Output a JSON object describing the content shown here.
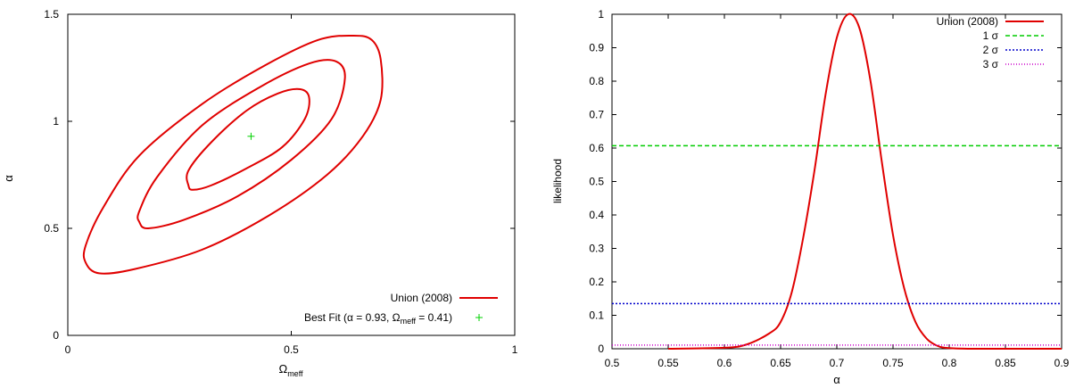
{
  "chart_data": [
    {
      "type": "line",
      "title": "",
      "xlabel": "Ω",
      "xlabel_sub": "meff",
      "ylabel": "α",
      "xlim": [
        0,
        1
      ],
      "ylim": [
        0,
        1.5
      ],
      "xticks": [
        0,
        0.5,
        1
      ],
      "xtick_labels": [
        "0",
        "0.5",
        "1"
      ],
      "yticks": [
        0,
        0.5,
        1,
        1.5
      ],
      "ytick_labels": [
        "0",
        "0.5",
        "1",
        "1.5"
      ],
      "legend_position": "bottom-right",
      "series": [
        {
          "name": "Union (2008)",
          "color": "#e00000",
          "contours": [
            [
              [
                0.27,
                0.7
              ],
              [
                0.28,
                0.68
              ],
              [
                0.32,
                0.7
              ],
              [
                0.4,
                0.78
              ],
              [
                0.48,
                0.88
              ],
              [
                0.53,
                1.01
              ],
              [
                0.54,
                1.11
              ],
              [
                0.52,
                1.15
              ],
              [
                0.47,
                1.13
              ],
              [
                0.4,
                1.05
              ],
              [
                0.32,
                0.9
              ],
              [
                0.27,
                0.77
              ],
              [
                0.27,
                0.7
              ]
            ],
            [
              [
                0.16,
                0.53
              ],
              [
                0.18,
                0.5
              ],
              [
                0.26,
                0.54
              ],
              [
                0.38,
                0.65
              ],
              [
                0.5,
                0.82
              ],
              [
                0.59,
                1.01
              ],
              [
                0.62,
                1.2
              ],
              [
                0.6,
                1.28
              ],
              [
                0.54,
                1.27
              ],
              [
                0.43,
                1.16
              ],
              [
                0.3,
                0.98
              ],
              [
                0.2,
                0.74
              ],
              [
                0.16,
                0.58
              ],
              [
                0.16,
                0.53
              ]
            ],
            [
              [
                0.04,
                0.34
              ],
              [
                0.07,
                0.29
              ],
              [
                0.15,
                0.31
              ],
              [
                0.3,
                0.4
              ],
              [
                0.45,
                0.56
              ],
              [
                0.58,
                0.75
              ],
              [
                0.66,
                0.93
              ],
              [
                0.7,
                1.1
              ],
              [
                0.7,
                1.29
              ],
              [
                0.68,
                1.38
              ],
              [
                0.64,
                1.4
              ],
              [
                0.56,
                1.38
              ],
              [
                0.44,
                1.26
              ],
              [
                0.3,
                1.08
              ],
              [
                0.16,
                0.84
              ],
              [
                0.08,
                0.6
              ],
              [
                0.04,
                0.42
              ],
              [
                0.04,
                0.34
              ]
            ]
          ]
        },
        {
          "name": "Best Fit (α = 0.93, Ω",
          "name_sub": "meff",
          "name_suffix": " = 0.41)",
          "color": "#00d000",
          "marker": "+",
          "points": [
            [
              0.41,
              0.93
            ]
          ]
        }
      ]
    },
    {
      "type": "line",
      "title": "",
      "xlabel": "α",
      "ylabel": "likelihood",
      "xlim": [
        0.5,
        0.9
      ],
      "ylim": [
        0,
        1
      ],
      "xticks": [
        0.5,
        0.55,
        0.6,
        0.65,
        0.7,
        0.75,
        0.8,
        0.85,
        0.9
      ],
      "xtick_labels": [
        "0.5",
        "0.55",
        "0.6",
        "0.65",
        "0.7",
        "0.75",
        "0.8",
        "0.85",
        "0.9"
      ],
      "yticks": [
        0,
        0.1,
        0.2,
        0.3,
        0.4,
        0.5,
        0.6,
        0.7,
        0.8,
        0.9,
        1
      ],
      "ytick_labels": [
        "0",
        "0.1",
        "0.2",
        "0.3",
        "0.4",
        "0.5",
        "0.6",
        "0.7",
        "0.8",
        "0.9",
        "1"
      ],
      "legend_position": "top-right",
      "series": [
        {
          "name": "Union (2008)",
          "color": "#e00000",
          "style": "solid",
          "x": [
            0.55,
            0.6,
            0.62,
            0.64,
            0.65,
            0.66,
            0.67,
            0.68,
            0.69,
            0.7,
            0.71,
            0.72,
            0.73,
            0.74,
            0.75,
            0.76,
            0.77,
            0.78,
            0.79,
            0.8,
            0.82,
            0.85
          ],
          "y": [
            0.0,
            0.003,
            0.013,
            0.046,
            0.08,
            0.17,
            0.33,
            0.53,
            0.76,
            0.93,
            1.0,
            0.96,
            0.8,
            0.56,
            0.34,
            0.18,
            0.08,
            0.03,
            0.008,
            0.002,
            0.0,
            0.0
          ]
        },
        {
          "name": "1 σ",
          "color": "#00cc00",
          "style": "dashed",
          "y_const": 0.607
        },
        {
          "name": "2 σ",
          "color": "#0000cc",
          "style": "dotted",
          "y_const": 0.135
        },
        {
          "name": "3 σ",
          "color": "#cc00cc",
          "style": "dotted-fine",
          "y_const": 0.011
        }
      ]
    }
  ]
}
